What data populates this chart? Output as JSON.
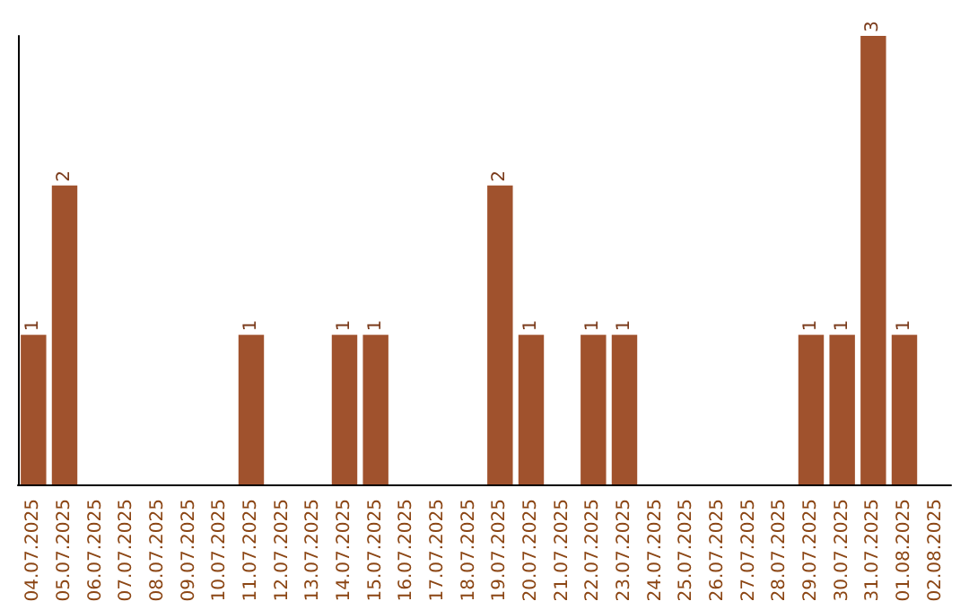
{
  "chart_data": {
    "type": "bar",
    "categories": [
      "04.07.2025",
      "05.07.2025",
      "06.07.2025",
      "07.07.2025",
      "08.07.2025",
      "09.07.2025",
      "10.07.2025",
      "11.07.2025",
      "12.07.2025",
      "13.07.2025",
      "14.07.2025",
      "15.07.2025",
      "16.07.2025",
      "17.07.2025",
      "18.07.2025",
      "19.07.2025",
      "20.07.2025",
      "21.07.2025",
      "22.07.2025",
      "23.07.2025",
      "24.07.2025",
      "25.07.2025",
      "26.07.2025",
      "27.07.2025",
      "28.07.2025",
      "29.07.2025",
      "30.07.2025",
      "31.07.2025",
      "01.08.2025",
      "02.08.2025"
    ],
    "values": [
      1,
      2,
      0,
      0,
      0,
      0,
      0,
      1,
      0,
      0,
      1,
      1,
      0,
      0,
      0,
      2,
      1,
      0,
      1,
      1,
      0,
      0,
      0,
      0,
      0,
      1,
      1,
      3,
      1,
      0
    ],
    "value_labels": [
      "1",
      "2",
      null,
      null,
      null,
      null,
      null,
      "1",
      null,
      null,
      "1",
      "1",
      null,
      null,
      null,
      "2",
      "1",
      null,
      "1",
      "1",
      null,
      null,
      null,
      null,
      null,
      "1",
      "1",
      "3",
      "1",
      null
    ],
    "color": "#a0522d",
    "tick_labels": "x"
  }
}
